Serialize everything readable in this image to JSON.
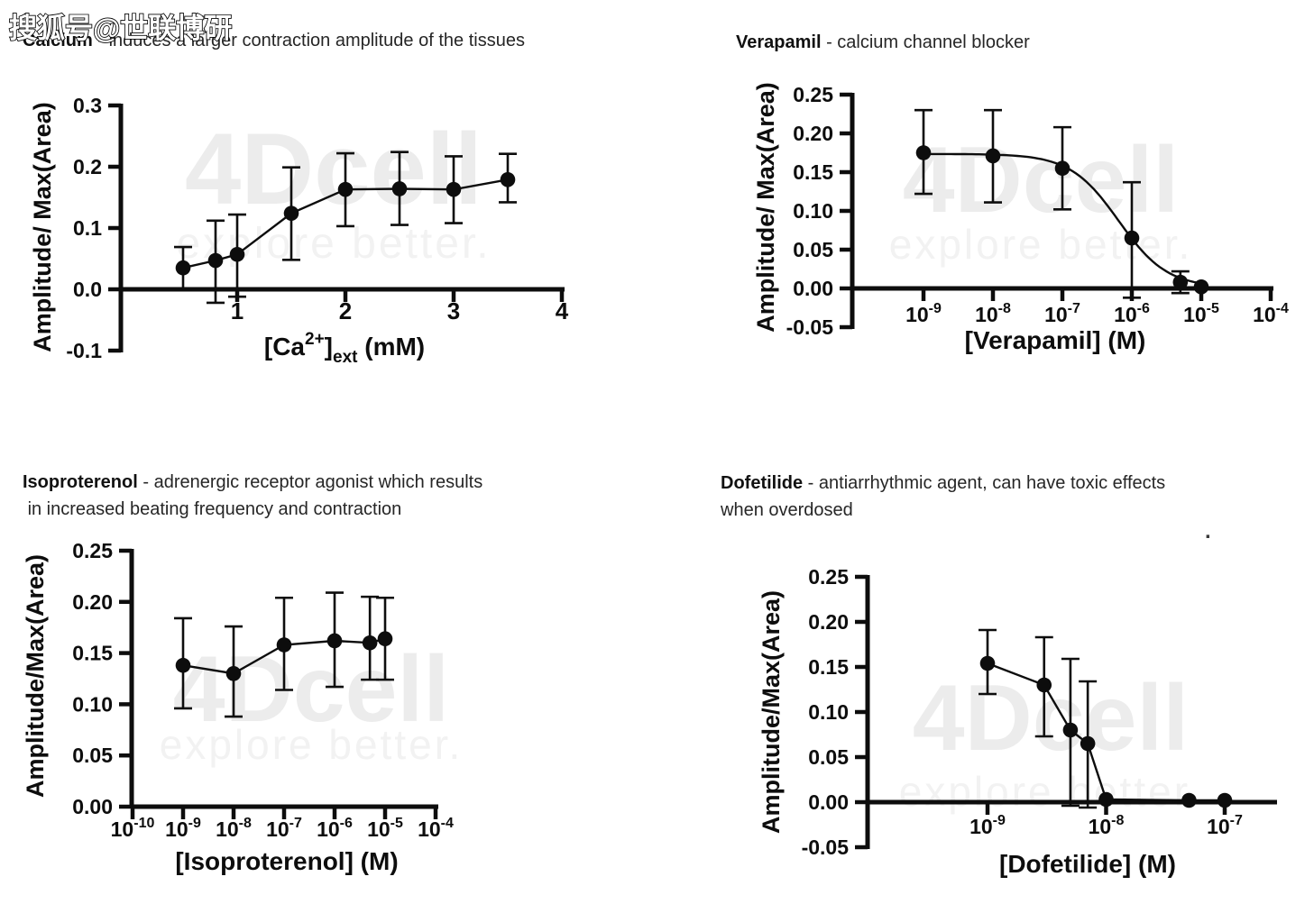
{
  "overlay": {
    "sohu_watermark": "搜狐号@世联博研",
    "stray_mark": "."
  },
  "watermark": {
    "brand": "4Dcell",
    "tagline": "explore better.",
    "brand_color": "#ececec",
    "tagline_color": "#f2f2f2"
  },
  "axis_color": "#0d0d0d",
  "chart_data": [
    {
      "id": "calcium",
      "type": "scatter",
      "title": {
        "bold": "Calcium",
        "rest": " - induces a larger contraction amplitude of the tissues",
        "line2": ""
      },
      "ylabel": "Amplitude/ Max(Area)",
      "xlabel": "[Ca2+]ext (mM)",
      "xlabel_rich": [
        {
          "t": "[Ca"
        },
        {
          "t": "2+",
          "m": "sup"
        },
        {
          "t": "]"
        },
        {
          "t": "ext",
          "m": "sub"
        },
        {
          "t": " (mM)"
        }
      ],
      "xscale": "linear",
      "xlim": [
        0,
        4
      ],
      "ylim": [
        -0.1,
        0.3
      ],
      "grid": false,
      "yticks": [
        {
          "v": -0.1,
          "l": "-0.1"
        },
        {
          "v": 0,
          "l": "0.0"
        },
        {
          "v": 0.1,
          "l": "0.1"
        },
        {
          "v": 0.2,
          "l": "0.2"
        },
        {
          "v": 0.3,
          "l": "0.3"
        }
      ],
      "xticks": [
        {
          "v": 1,
          "l": "1"
        },
        {
          "v": 2,
          "l": "2"
        },
        {
          "v": 3,
          "l": "3"
        },
        {
          "v": 4,
          "l": "4"
        }
      ],
      "connect": "segments",
      "points": [
        {
          "x": 0.5,
          "y": 0.035,
          "lo": 0.001,
          "hi": 0.069
        },
        {
          "x": 0.8,
          "y": 0.047,
          "lo": -0.022,
          "hi": 0.112
        },
        {
          "x": 1.0,
          "y": 0.057,
          "lo": -0.012,
          "hi": 0.122
        },
        {
          "x": 1.5,
          "y": 0.124,
          "lo": 0.048,
          "hi": 0.199
        },
        {
          "x": 2.0,
          "y": 0.163,
          "lo": 0.103,
          "hi": 0.222
        },
        {
          "x": 2.5,
          "y": 0.164,
          "lo": 0.105,
          "hi": 0.224
        },
        {
          "x": 3.0,
          "y": 0.163,
          "lo": 0.108,
          "hi": 0.217
        },
        {
          "x": 3.5,
          "y": 0.179,
          "lo": 0.142,
          "hi": 0.221
        }
      ]
    },
    {
      "id": "verapamil",
      "type": "scatter",
      "title": {
        "bold": "Verapamil",
        "rest": " - calcium channel blocker",
        "line2": ""
      },
      "ylabel": "Amplitude/ Max(Area)",
      "xlabel": "[Verapamil] (M)",
      "xlabel_rich": [
        {
          "t": "[Verapamil] (M)"
        }
      ],
      "xscale": "log",
      "xlim_exp": [
        -10,
        -4
      ],
      "ylim": [
        -0.05,
        0.25
      ],
      "grid": false,
      "yticks": [
        {
          "v": -0.05,
          "l": "-0.05"
        },
        {
          "v": 0,
          "l": "0.00"
        },
        {
          "v": 0.05,
          "l": "0.05"
        },
        {
          "v": 0.1,
          "l": "0.10"
        },
        {
          "v": 0.15,
          "l": "0.15"
        },
        {
          "v": 0.2,
          "l": "0.20"
        },
        {
          "v": 0.25,
          "l": "0.25"
        }
      ],
      "xticks": [
        {
          "e": -9
        },
        {
          "e": -8
        },
        {
          "e": -7
        },
        {
          "e": -6
        },
        {
          "e": -5
        },
        {
          "e": -4
        }
      ],
      "connect": "fit",
      "fit": {
        "top": 0.1735,
        "bottom": 0.001,
        "logec50": -6.19,
        "hill": 1.25,
        "from": -9.0,
        "to": -5.0
      },
      "points": [
        {
          "x": 1e-09,
          "y": 0.175,
          "lo": 0.122,
          "hi": 0.23
        },
        {
          "x": 1e-08,
          "y": 0.171,
          "lo": 0.111,
          "hi": 0.23
        },
        {
          "x": 1e-07,
          "y": 0.155,
          "lo": 0.102,
          "hi": 0.208
        },
        {
          "x": 1e-06,
          "y": 0.065,
          "lo": -0.012,
          "hi": 0.137
        },
        {
          "x": 5e-06,
          "y": 0.008,
          "lo": -0.006,
          "hi": 0.022
        },
        {
          "x": 1e-05,
          "y": 0.002,
          "lo": 0.002,
          "hi": 0.002
        }
      ]
    },
    {
      "id": "isoproterenol",
      "type": "scatter",
      "title": {
        "bold": "Isoproterenol",
        "rest": " - adrenergic receptor agonist which results",
        "line2": " in increased beating frequency and contraction"
      },
      "ylabel": "Amplitude/Max(Area)",
      "xlabel": "[Isoproterenol] (M)",
      "xlabel_rich": [
        {
          "t": "[Isoproterenol] (M)"
        }
      ],
      "xscale": "log",
      "xlim_exp": [
        -10,
        -4
      ],
      "ylim": [
        0,
        0.25
      ],
      "grid": false,
      "yticks": [
        {
          "v": 0,
          "l": "0.00"
        },
        {
          "v": 0.05,
          "l": "0.05"
        },
        {
          "v": 0.1,
          "l": "0.10"
        },
        {
          "v": 0.15,
          "l": "0.15"
        },
        {
          "v": 0.2,
          "l": "0.20"
        },
        {
          "v": 0.25,
          "l": "0.25"
        }
      ],
      "xticks": [
        {
          "e": -10
        },
        {
          "e": -9
        },
        {
          "e": -8
        },
        {
          "e": -7
        },
        {
          "e": -6
        },
        {
          "e": -5
        },
        {
          "e": -4
        }
      ],
      "connect": "segments",
      "points": [
        {
          "x": 1e-09,
          "y": 0.138,
          "lo": 0.096,
          "hi": 0.184
        },
        {
          "x": 1e-08,
          "y": 0.13,
          "lo": 0.088,
          "hi": 0.176
        },
        {
          "x": 1e-07,
          "y": 0.158,
          "lo": 0.114,
          "hi": 0.204
        },
        {
          "x": 1e-06,
          "y": 0.162,
          "lo": 0.117,
          "hi": 0.209
        },
        {
          "x": 5e-06,
          "y": 0.16,
          "lo": 0.124,
          "hi": 0.205
        },
        {
          "x": 1e-05,
          "y": 0.164,
          "lo": 0.124,
          "hi": 0.204
        }
      ]
    },
    {
      "id": "dofetilide",
      "type": "scatter",
      "title": {
        "bold": "Dofetilide",
        "rest": " - antiarrhythmic agent, can have toxic effects",
        "line2": "when overdosed"
      },
      "ylabel": "Amplitude/Max(Area)",
      "xlabel": "[Dofetilide] (M)",
      "xlabel_rich": [
        {
          "t": "[Dofetilide] (M)"
        }
      ],
      "xscale": "log",
      "xlim_exp": [
        -10,
        -6.6
      ],
      "ylim": [
        -0.05,
        0.25
      ],
      "grid": false,
      "yticks": [
        {
          "v": -0.05,
          "l": "-0.05"
        },
        {
          "v": 0,
          "l": "0.00"
        },
        {
          "v": 0.05,
          "l": "0.05"
        },
        {
          "v": 0.1,
          "l": "0.10"
        },
        {
          "v": 0.15,
          "l": "0.15"
        },
        {
          "v": 0.2,
          "l": "0.20"
        },
        {
          "v": 0.25,
          "l": "0.25"
        }
      ],
      "xticks": [
        {
          "e": -9
        },
        {
          "e": -8
        },
        {
          "e": -7
        }
      ],
      "connect": "segments",
      "points": [
        {
          "x": 1e-09,
          "y": 0.154,
          "lo": 0.12,
          "hi": 0.191
        },
        {
          "x": 3e-09,
          "y": 0.13,
          "lo": 0.073,
          "hi": 0.183
        },
        {
          "x": 5e-09,
          "y": 0.08,
          "lo": -0.004,
          "hi": 0.159
        },
        {
          "x": 7e-09,
          "y": 0.065,
          "lo": -0.006,
          "hi": 0.134
        },
        {
          "x": 1e-08,
          "y": 0.003,
          "lo": 0.003,
          "hi": 0.003
        },
        {
          "x": 5e-08,
          "y": 0.002,
          "lo": 0.002,
          "hi": 0.002
        },
        {
          "x": 1e-07,
          "y": 0.002,
          "lo": 0.002,
          "hi": 0.002
        }
      ]
    }
  ]
}
